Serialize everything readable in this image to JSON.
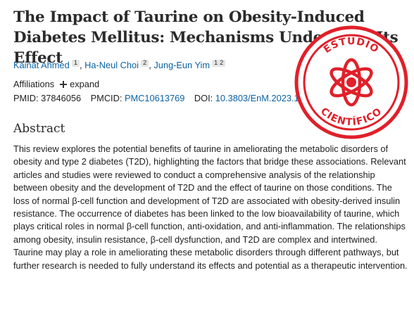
{
  "article": {
    "title": "The Impact of Taurine on Obesity-Induced Diabetes Mellitus: Mechanisms Underlying Its Effect",
    "authors": [
      {
        "name": "Kainat Ahmed",
        "affiliations": "1"
      },
      {
        "name": "Ha-Neul Choi",
        "affiliations": "2"
      },
      {
        "name": "Jung-Eun Yim",
        "affiliations": "1 2"
      }
    ],
    "affiliations_label": "Affiliations",
    "expand_label": "expand",
    "pmid_label": "PMID:",
    "pmid": "37846056",
    "pmcid_label": "PMCID:",
    "pmcid": "PMC10613769",
    "doi_label": "DOI:",
    "doi": "10.3803/EnM.2023.1776",
    "abstract_heading": "Abstract",
    "abstract": "This review explores the potential benefits of taurine in ameliorating the metabolic disorders of obesity and type 2 diabetes (T2D), highlighting the factors that bridge these associations. Relevant articles and studies were reviewed to conduct a comprehensive analysis of the relationship between obesity and the development of T2D and the effect of taurine on those conditions. The loss of normal β-cell function and development of T2D are associated with obesity-derived insulin resistance. The occurrence of diabetes has been linked to the low bioavailability of taurine, which plays critical roles in normal β-cell function, anti-oxidation, and anti-inflammation. The relationships among obesity, insulin resistance, β-cell dysfunction, and T2D are complex and intertwined. Taurine may play a role in ameliorating these metabolic disorders through different pathways, but further research is needed to fully understand its effects and potential as a therapeutic intervention."
  },
  "stamp": {
    "top_text": "ESTUDIO",
    "bottom_text": "CIENTÍFICO",
    "color": "#e0202a",
    "icon": "atom-icon"
  },
  "colors": {
    "link": "#0b62a4",
    "text": "#212121",
    "title": "#2b2b2b"
  }
}
